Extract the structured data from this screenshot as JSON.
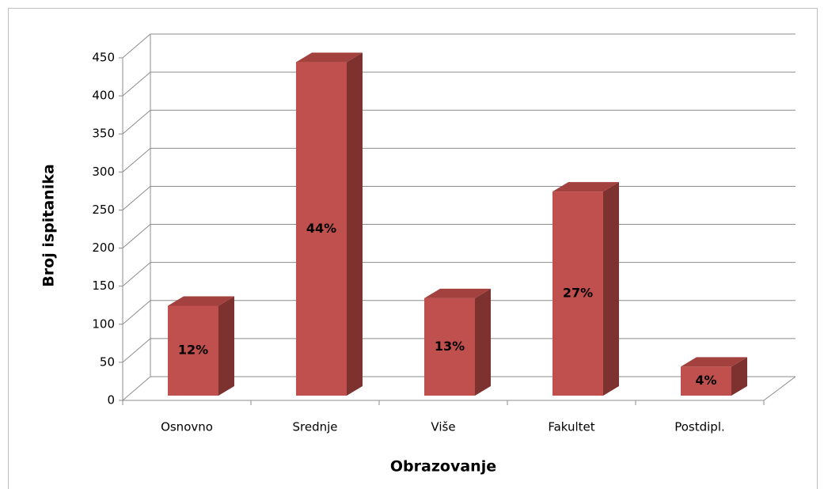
{
  "chart_data": {
    "type": "bar3d",
    "categories": [
      "Osnovno",
      "Srednje",
      "Više",
      "Fakultet",
      "Postdipl."
    ],
    "values": [
      118,
      438,
      128,
      268,
      38
    ],
    "data_labels": [
      "12%",
      "44%",
      "13%",
      "27%",
      "4%"
    ],
    "color": "#c0504d",
    "xlabel": "Obrazovanje",
    "ylabel": "Broj ispitanika",
    "ylim": [
      0,
      450
    ],
    "yticks": [
      0,
      50,
      100,
      150,
      200,
      250,
      300,
      350,
      400,
      450
    ],
    "grid": true
  }
}
